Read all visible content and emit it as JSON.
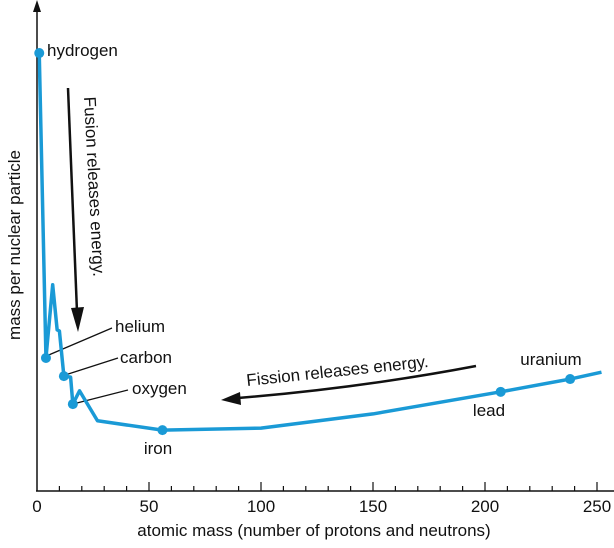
{
  "chart_data": {
    "type": "line",
    "title": "",
    "xlabel": "atomic mass (number of protons and neutrons)",
    "ylabel": "mass per nuclear particle",
    "xlim": [
      0,
      252
    ],
    "ylim": [
      0,
      100
    ],
    "x_ticks": [
      0,
      50,
      100,
      150,
      200,
      250
    ],
    "x_minor_step": 10,
    "grid": false,
    "color": "#1a9ad6",
    "series": [
      {
        "name": "mass per nuclear particle",
        "x": [
          1,
          4,
          7,
          9,
          10,
          12,
          15,
          16,
          19,
          27,
          56,
          100,
          150,
          207,
          238,
          252
        ],
        "y": [
          89.2,
          27.1,
          42,
          32.8,
          32.6,
          23.4,
          23.2,
          17.7,
          20.4,
          14.3,
          12.4,
          12.8,
          15.7,
          20.2,
          22.8,
          24.2
        ]
      }
    ],
    "labeled_points": [
      {
        "label": "hydrogen",
        "x": 1,
        "y": 89.2
      },
      {
        "label": "helium",
        "x": 4,
        "y": 27.1
      },
      {
        "label": "carbon",
        "x": 12,
        "y": 23.4
      },
      {
        "label": "oxygen",
        "x": 16,
        "y": 17.7
      },
      {
        "label": "iron",
        "x": 56,
        "y": 12.4
      },
      {
        "label": "lead",
        "x": 207,
        "y": 20.2
      },
      {
        "label": "uranium",
        "x": 238,
        "y": 22.8
      }
    ],
    "annotations": {
      "fusion": "Fusion releases energy.",
      "fission": "Fission releases energy."
    }
  }
}
